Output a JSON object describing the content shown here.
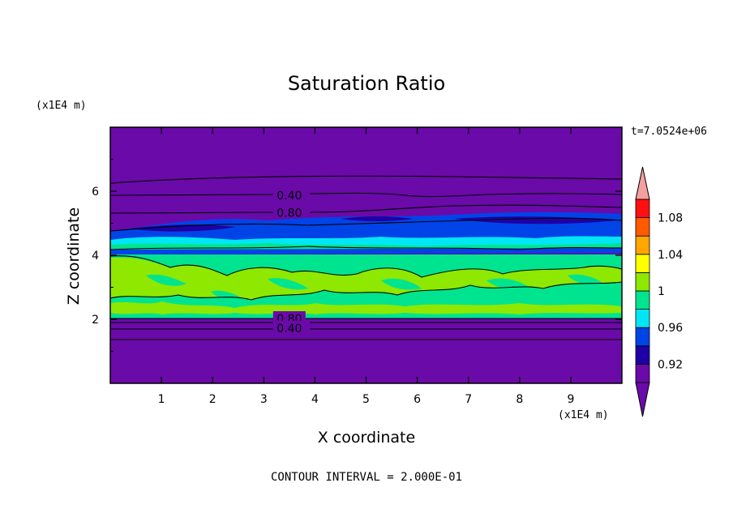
{
  "chart_data": {
    "type": "heatmap",
    "title": "Saturation Ratio",
    "xlabel": "X coordinate",
    "ylabel": "Z coordinate",
    "x_unit": "(x1E4 m)",
    "y_unit": "(x1E4 m)",
    "time_label": "t=7.0524e+06",
    "footer": "CONTOUR INTERVAL = 2.000E-01",
    "xlim": [
      0,
      10
    ],
    "ylim": [
      0,
      8
    ],
    "x_ticks": [
      "1",
      "2",
      "3",
      "4",
      "5",
      "6",
      "7",
      "8",
      "9"
    ],
    "y_ticks": [
      "2",
      "4",
      "6"
    ],
    "contour_labels": [
      {
        "text": "0.40",
        "x": 3.5,
        "y": 5.85
      },
      {
        "text": "0.80",
        "x": 3.5,
        "y": 5.3
      },
      {
        "text": "0.80",
        "x": 3.5,
        "y": 2.0
      },
      {
        "text": "0.40",
        "x": 3.5,
        "y": 1.7
      }
    ],
    "colorbar": {
      "tick_labels": [
        "1.08",
        "1.04",
        "1",
        "0.96",
        "0.92"
      ],
      "tick_values": [
        1.08,
        1.04,
        1.0,
        0.96,
        0.92
      ],
      "levels": [
        0.9,
        0.92,
        0.94,
        0.96,
        0.98,
        1.0,
        1.02,
        1.04,
        1.06,
        1.08,
        1.1
      ],
      "colors": [
        "#6a0aa9",
        "#1e00a6",
        "#0044e8",
        "#00e6f5",
        "#00e48f",
        "#8ee800",
        "#ffff00",
        "#ffa600",
        "#ff5a00",
        "#ff1010"
      ],
      "under_color": "#6a0aa9",
      "over_color": "#f4a0a0"
    },
    "regions": [
      {
        "z_min": 0,
        "z_max": 2.0,
        "level": 0.9
      },
      {
        "z_min": 2.0,
        "z_max": 4.1,
        "level": 1.0
      },
      {
        "z_min": 4.1,
        "z_max": 5.0,
        "level": 0.96
      },
      {
        "z_min": 5.0,
        "z_max": 8.0,
        "level": 0.9
      }
    ]
  }
}
